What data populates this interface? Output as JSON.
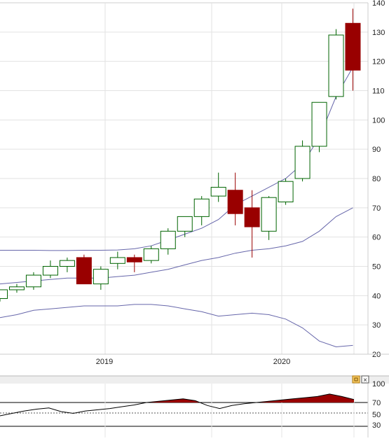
{
  "chart_data": [
    {
      "type": "candlestick",
      "title": "",
      "ylim": [
        20,
        140
      ],
      "y_ticks": [
        "140",
        "130",
        "120",
        "110",
        "100",
        "90",
        "80",
        "70",
        "60",
        "50",
        "40",
        "30",
        "20"
      ],
      "x_labels": [
        "2019",
        "2020"
      ],
      "grid": true,
      "colors": {
        "up": "#006400",
        "down": "#990000",
        "bands": "#6666aa"
      },
      "candles": [
        {
          "open": 39,
          "high": 42,
          "low": 38,
          "close": 42
        },
        {
          "open": 42,
          "high": 44,
          "low": 41,
          "close": 43
        },
        {
          "open": 43,
          "high": 48,
          "low": 42,
          "close": 47
        },
        {
          "open": 47,
          "high": 52,
          "low": 46,
          "close": 50
        },
        {
          "open": 50,
          "high": 53,
          "low": 48,
          "close": 52
        },
        {
          "open": 53,
          "high": 54,
          "low": 44,
          "close": 44
        },
        {
          "open": 44,
          "high": 50,
          "low": 42,
          "close": 49
        },
        {
          "open": 51,
          "high": 55,
          "low": 49,
          "close": 53
        },
        {
          "open": 53,
          "high": 54,
          "low": 48,
          "close": 51.5
        },
        {
          "open": 52,
          "high": 57,
          "low": 51,
          "close": 56
        },
        {
          "open": 56,
          "high": 63,
          "low": 54,
          "close": 62
        },
        {
          "open": 62,
          "high": 67,
          "low": 60,
          "close": 67
        },
        {
          "open": 67,
          "high": 74,
          "low": 64,
          "close": 73
        },
        {
          "open": 74,
          "high": 82,
          "low": 72,
          "close": 77
        },
        {
          "open": 76,
          "high": 82,
          "low": 64,
          "close": 68
        },
        {
          "open": 70,
          "high": 76,
          "low": 53,
          "close": 63.5
        },
        {
          "open": 62,
          "high": 74,
          "low": 59,
          "close": 73.5
        },
        {
          "open": 72,
          "high": 80,
          "low": 71,
          "close": 79
        },
        {
          "open": 80,
          "high": 93,
          "low": 79,
          "close": 91
        },
        {
          "open": 91,
          "high": 106,
          "low": 89,
          "close": 106
        },
        {
          "open": 108,
          "high": 131,
          "low": 107,
          "close": 129
        },
        {
          "open": 133,
          "high": 138,
          "low": 110,
          "close": 117
        }
      ],
      "bands": {
        "upper": [
          55.5,
          55.5,
          55.5,
          55.4,
          55.4,
          55.5,
          55.5,
          55.6,
          56,
          57,
          59,
          61,
          63,
          66,
          71,
          74,
          77,
          80,
          85,
          94,
          108,
          118
        ],
        "middle": [
          44,
          44.5,
          45,
          45.5,
          46,
          46,
          46,
          46.5,
          47,
          48,
          49,
          50.5,
          52,
          53,
          54.5,
          55.5,
          56,
          57,
          58.5,
          62,
          67,
          70
        ],
        "lower": [
          32.5,
          33.5,
          35,
          35.5,
          36,
          36.5,
          36.5,
          36.5,
          37,
          37,
          36.5,
          35.5,
          34.5,
          33,
          33.5,
          34,
          33.5,
          32,
          29,
          24.5,
          22.5,
          23
        ]
      }
    },
    {
      "type": "line",
      "title": "",
      "ylim": [
        20,
        108
      ],
      "y_ticks": [
        "100",
        "70",
        "50",
        "30"
      ],
      "reference_levels": [
        70,
        50,
        30
      ],
      "fill_above": 70,
      "values": [
        48,
        52,
        56,
        59,
        61,
        55,
        52,
        56,
        58,
        60,
        63,
        66,
        70,
        72,
        74,
        76,
        73,
        65,
        60,
        65,
        68,
        70,
        72,
        74,
        76,
        78,
        80,
        84,
        80,
        75
      ]
    }
  ],
  "oscillator_panel": {
    "buttons": {
      "settings_icon": "settings-icon",
      "close_icon": "close-icon",
      "close_glyph": "×"
    }
  }
}
